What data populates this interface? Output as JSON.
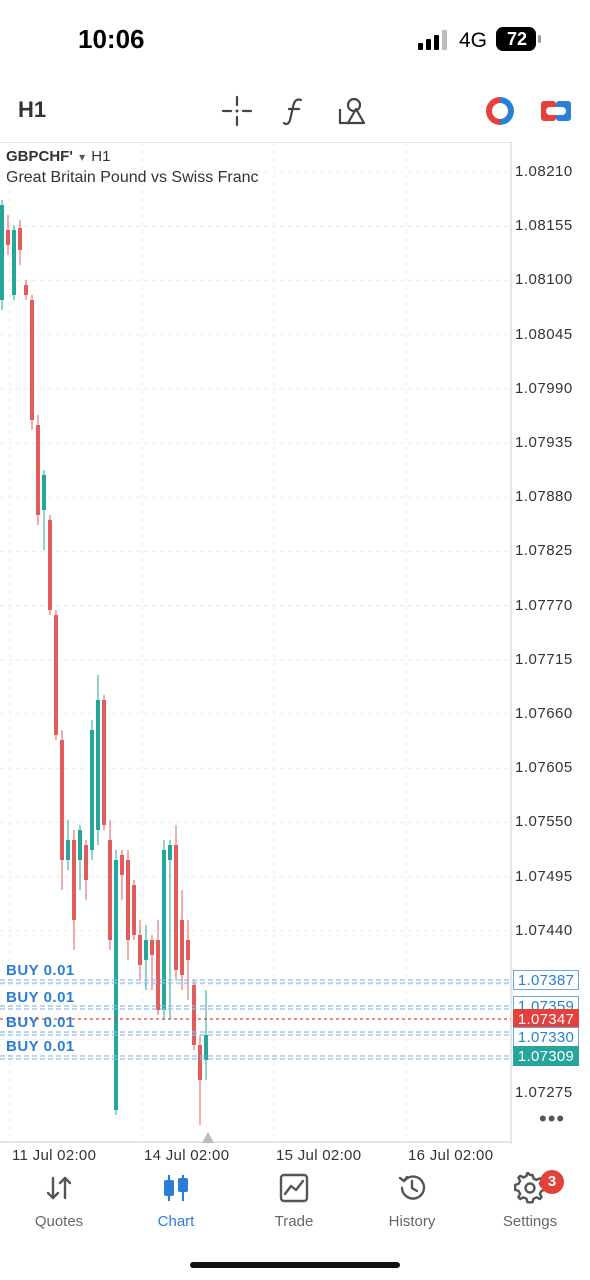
{
  "status_bar": {
    "time": "10:06",
    "network": "4G",
    "battery": "72"
  },
  "toolbar": {
    "timeframe": "H1",
    "icons": [
      "crosshair-icon",
      "indicator-function-icon",
      "objects-shapes-icon",
      "one-click-trading-icon",
      "trade-panel-icon"
    ]
  },
  "chart": {
    "symbol": "GBPCHF'",
    "dropdown_glyph": "▾",
    "timeframe": "H1",
    "description": "Great Britain Pound vs Swiss Franc",
    "price_axis": [
      "1.08210",
      "1.08155",
      "1.08100",
      "1.08045",
      "1.07990",
      "1.07935",
      "1.07880",
      "1.07825",
      "1.07770",
      "1.07715",
      "1.07660",
      "1.07605",
      "1.07550",
      "1.07495",
      "1.07440",
      "1.07275"
    ],
    "date_axis": [
      "11 Jul 02:00",
      "14 Jul 02:00",
      "15 Jul 02:00",
      "16 Jul 02:00"
    ],
    "orders": [
      {
        "label": "BUY 0.01",
        "price": "1.07387"
      },
      {
        "label": "BUY 0.01",
        "price": "1.07359"
      },
      {
        "label": "BUY 0.01",
        "price": "1.07330"
      },
      {
        "label": "BUY 0.01",
        "price": "1.07309"
      }
    ],
    "bid_price": "1.07347",
    "colors": {
      "bull": "#26a69a",
      "bear": "#e25c5c",
      "order": "#2a7fd4",
      "bid": "#e5403b"
    },
    "more": "•••"
  },
  "nav": {
    "items": [
      {
        "label": "Quotes",
        "icon": "quotes-arrows-icon"
      },
      {
        "label": "Chart",
        "icon": "chart-candles-icon"
      },
      {
        "label": "Trade",
        "icon": "trade-chart-icon"
      },
      {
        "label": "History",
        "icon": "history-clock-icon"
      },
      {
        "label": "Settings",
        "icon": "settings-gear-icon"
      }
    ],
    "settings_badge": "3"
  }
}
